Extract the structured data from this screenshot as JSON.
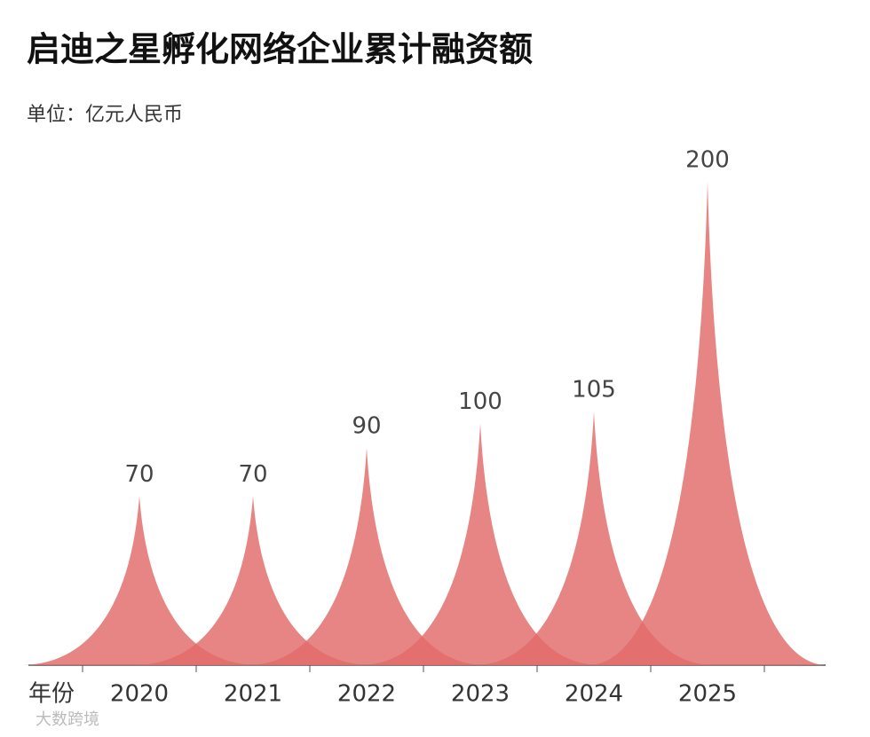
{
  "chart_data": {
    "type": "peak",
    "title": "启迪之星孵化网络企业累计融资额",
    "subtitle": "单位：亿元人民币",
    "x_label": "年份",
    "watermark": "大数跨境",
    "categories": [
      "2020",
      "2021",
      "2022",
      "2023",
      "2024",
      "2025"
    ],
    "values": [
      70,
      70,
      90,
      100,
      105,
      200
    ],
    "color": "#e26a6a",
    "ylim": [
      0,
      200
    ]
  }
}
